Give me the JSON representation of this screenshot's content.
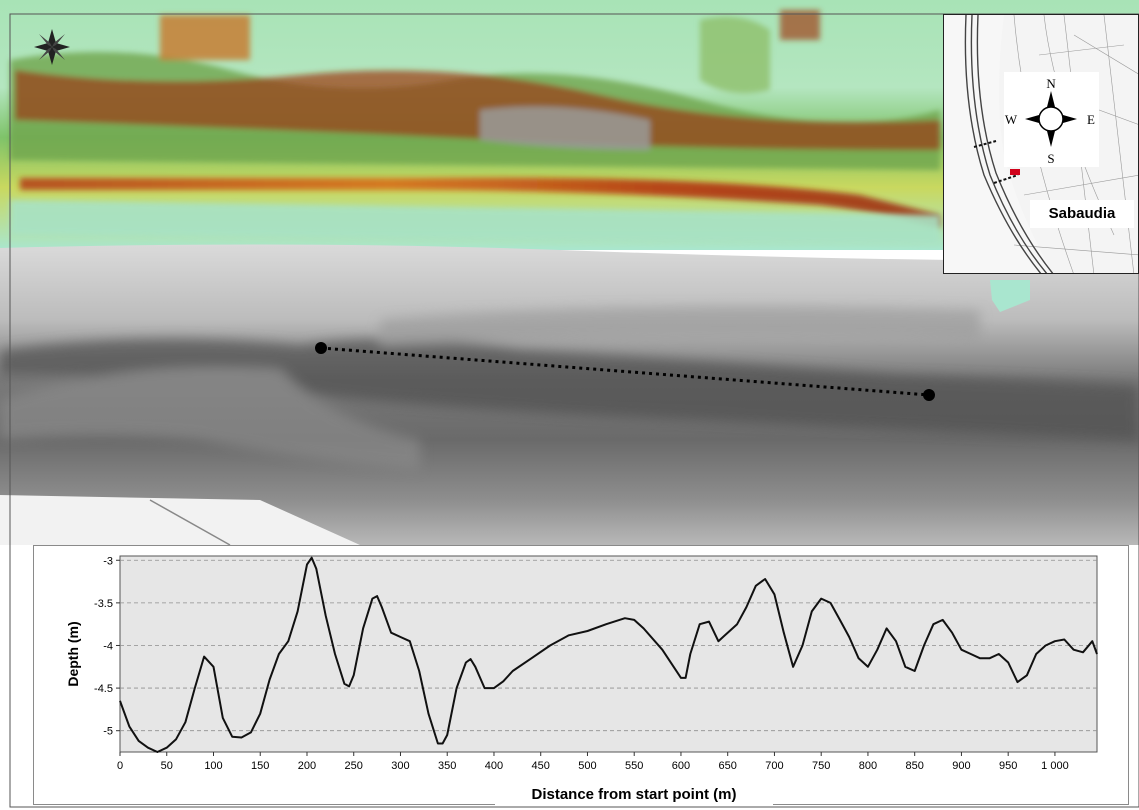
{
  "map": {
    "compass_rose": "compass-rose-icon",
    "profile_line": "dotted-profile-line"
  },
  "inset": {
    "place_name": "Sabaudia",
    "compass": {
      "n": "N",
      "s": "S",
      "e": "E",
      "w": "W"
    }
  },
  "chart_data": {
    "type": "line",
    "title": "",
    "xlabel": "Distance from start point (m)",
    "ylabel": "Depth (m)",
    "xlim": [
      0,
      1045
    ],
    "ylim": [
      -5.25,
      -2.95
    ],
    "x_ticks": [
      0,
      50,
      100,
      150,
      200,
      250,
      300,
      350,
      400,
      450,
      500,
      550,
      600,
      650,
      700,
      750,
      800,
      850,
      900,
      950,
      1000
    ],
    "x_tick_labels": [
      "0",
      "50",
      "100",
      "150",
      "200",
      "250",
      "300",
      "350",
      "400",
      "450",
      "500",
      "550",
      "600",
      "650",
      "700",
      "750",
      "800",
      "850",
      "900",
      "950",
      "1 000"
    ],
    "y_ticks": [
      -3,
      -3.5,
      -4,
      -4.5,
      -5
    ],
    "y_tick_labels": [
      "-3",
      "-3.5",
      "-4",
      "-4.5",
      "-5"
    ],
    "grid": true,
    "series": [
      {
        "x": [
          0,
          10,
          20,
          30,
          40,
          50,
          60,
          70,
          80,
          90,
          100,
          110,
          120,
          130,
          140,
          150,
          160,
          170,
          180,
          190,
          200,
          205,
          210,
          220,
          230,
          240,
          245,
          250,
          260,
          270,
          275,
          280,
          290,
          300,
          310,
          320,
          330,
          340,
          345,
          350,
          360,
          370,
          375,
          380,
          390,
          400,
          410,
          420,
          440,
          460,
          480,
          500,
          520,
          540,
          550,
          560,
          580,
          600,
          605,
          610,
          620,
          630,
          640,
          650,
          660,
          670,
          680,
          690,
          700,
          710,
          720,
          730,
          740,
          750,
          760,
          770,
          780,
          790,
          800,
          810,
          820,
          830,
          840,
          850,
          860,
          870,
          880,
          890,
          900,
          910,
          920,
          930,
          940,
          950,
          960,
          970,
          980,
          990,
          1000,
          1010,
          1020,
          1030,
          1040,
          1045
        ],
        "y": [
          -4.65,
          -4.95,
          -5.12,
          -5.2,
          -5.25,
          -5.2,
          -5.1,
          -4.9,
          -4.5,
          -4.13,
          -4.25,
          -4.85,
          -5.07,
          -5.08,
          -5.02,
          -4.8,
          -4.4,
          -4.1,
          -3.95,
          -3.6,
          -3.05,
          -2.97,
          -3.1,
          -3.65,
          -4.1,
          -4.45,
          -4.48,
          -4.35,
          -3.8,
          -3.45,
          -3.42,
          -3.55,
          -3.85,
          -3.9,
          -3.95,
          -4.3,
          -4.8,
          -5.15,
          -5.15,
          -5.05,
          -4.5,
          -4.2,
          -4.16,
          -4.25,
          -4.5,
          -4.5,
          -4.42,
          -4.3,
          -4.15,
          -4.0,
          -3.88,
          -3.83,
          -3.75,
          -3.68,
          -3.7,
          -3.8,
          -4.05,
          -4.38,
          -4.38,
          -4.1,
          -3.75,
          -3.72,
          -3.95,
          -3.85,
          -3.75,
          -3.55,
          -3.3,
          -3.22,
          -3.4,
          -3.85,
          -4.25,
          -4.0,
          -3.6,
          -3.45,
          -3.5,
          -3.7,
          -3.9,
          -4.15,
          -4.25,
          -4.05,
          -3.8,
          -3.95,
          -4.25,
          -4.3,
          -4.0,
          -3.75,
          -3.7,
          -3.85,
          -4.05,
          -4.1,
          -4.15,
          -4.15,
          -4.1,
          -4.2,
          -4.43,
          -4.35,
          -4.1,
          -4.0,
          -3.95,
          -3.93,
          -4.05,
          -4.08,
          -3.95,
          -4.1
        ]
      }
    ]
  }
}
